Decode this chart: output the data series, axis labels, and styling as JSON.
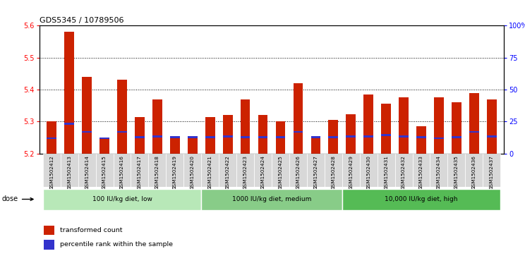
{
  "title": "GDS5345 / 10789506",
  "samples": [
    "GSM1502412",
    "GSM1502413",
    "GSM1502414",
    "GSM1502415",
    "GSM1502416",
    "GSM1502417",
    "GSM1502418",
    "GSM1502419",
    "GSM1502420",
    "GSM1502421",
    "GSM1502422",
    "GSM1502423",
    "GSM1502424",
    "GSM1502425",
    "GSM1502426",
    "GSM1502427",
    "GSM1502428",
    "GSM1502429",
    "GSM1502430",
    "GSM1502431",
    "GSM1502432",
    "GSM1502433",
    "GSM1502434",
    "GSM1502435",
    "GSM1502436",
    "GSM1502437"
  ],
  "red_values": [
    5.3,
    5.58,
    5.44,
    5.245,
    5.43,
    5.315,
    5.37,
    5.25,
    5.248,
    5.315,
    5.32,
    5.37,
    5.32,
    5.3,
    5.42,
    5.248,
    5.305,
    5.323,
    5.385,
    5.355,
    5.375,
    5.285,
    5.375,
    5.36,
    5.39,
    5.37
  ],
  "blue_values": [
    5.245,
    5.29,
    5.265,
    5.245,
    5.265,
    5.248,
    5.25,
    5.248,
    5.248,
    5.248,
    5.25,
    5.248,
    5.248,
    5.248,
    5.265,
    5.248,
    5.248,
    5.25,
    5.25,
    5.255,
    5.25,
    5.248,
    5.245,
    5.248,
    5.265,
    5.25
  ],
  "ymin": 5.2,
  "ymax": 5.6,
  "yticks": [
    5.2,
    5.3,
    5.4,
    5.5,
    5.6
  ],
  "right_yticks": [
    0,
    25,
    50,
    75,
    100
  ],
  "right_ytick_labels": [
    "0",
    "25",
    "50",
    "75",
    "100%"
  ],
  "bar_color": "#cc2200",
  "blue_color": "#3333cc",
  "plot_bg": "#ffffff",
  "tick_bg": "#d8d8d8",
  "groups": [
    {
      "label": "100 IU/kg diet, low",
      "start": 0,
      "end": 8,
      "color": "#b8e8b8"
    },
    {
      "label": "1000 IU/kg diet, medium",
      "start": 9,
      "end": 16,
      "color": "#88cc88"
    },
    {
      "label": "10,000 IU/kg diet, high",
      "start": 17,
      "end": 25,
      "color": "#55bb55"
    }
  ],
  "dose_label": "dose",
  "legend_red": "transformed count",
  "legend_blue": "percentile rank within the sample"
}
